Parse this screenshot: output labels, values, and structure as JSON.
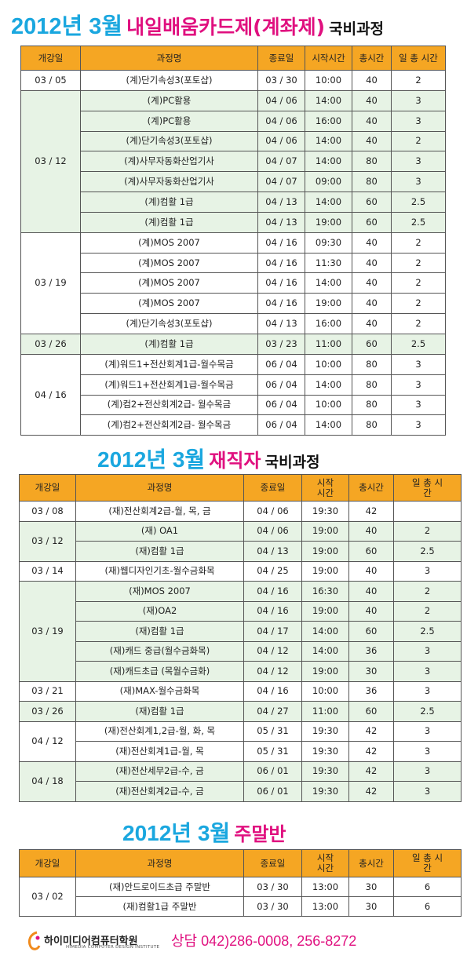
{
  "sections": [
    {
      "title": {
        "year": "2012년 3월",
        "highlight": "내일배움카드제(계좌제)",
        "tail": "국비과정"
      },
      "headers": [
        "개강일",
        "과정명",
        "종료일",
        "시작시간",
        "총시간",
        "일 총 시간"
      ],
      "groups": [
        {
          "date": "03 / 05",
          "shade": false,
          "rows": [
            [
              "(계)단기속성3(포토샵)",
              "03 / 30",
              "10:00",
              "40",
              "2"
            ]
          ]
        },
        {
          "date": "03 / 12",
          "shade": true,
          "rows": [
            [
              "(계)PC활용",
              "04 / 06",
              "14:00",
              "40",
              "3"
            ],
            [
              "(계)PC활용",
              "04 / 06",
              "16:00",
              "40",
              "3"
            ],
            [
              "(계)단기속성3(포토샵)",
              "04 / 06",
              "14:00",
              "40",
              "2"
            ],
            [
              "(계)사무자동화산업기사",
              "04 / 07",
              "14:00",
              "80",
              "3"
            ],
            [
              "(계)사무자동화산업기사",
              "04 / 07",
              "09:00",
              "80",
              "3"
            ],
            [
              "(계)컴활 1급",
              "04 / 13",
              "14:00",
              "60",
              "2.5"
            ],
            [
              "(계)컴활 1급",
              "04 / 13",
              "19:00",
              "60",
              "2.5"
            ]
          ]
        },
        {
          "date": "03 / 19",
          "shade": false,
          "rows": [
            [
              "(계)MOS 2007",
              "04 / 16",
              "09:30",
              "40",
              "2"
            ],
            [
              "(계)MOS 2007",
              "04 / 16",
              "11:30",
              "40",
              "2"
            ],
            [
              "(계)MOS 2007",
              "04 / 16",
              "14:00",
              "40",
              "2"
            ],
            [
              "(계)MOS 2007",
              "04 / 16",
              "19:00",
              "40",
              "2"
            ],
            [
              "(계)단기속성3(포토샵)",
              "04 / 13",
              "16:00",
              "40",
              "2"
            ]
          ]
        },
        {
          "date": "03 / 26",
          "shade": true,
          "rows": [
            [
              "(계)컴활 1급",
              "03 / 23",
              "11:00",
              "60",
              "2.5"
            ]
          ]
        },
        {
          "date": "04 / 16",
          "shade": false,
          "rows": [
            [
              "(계)워드1+전산회계1급-월수목금",
              "06 /  04",
              "10:00",
              "80",
              "3"
            ],
            [
              "(계)워드1+전산회계1급-월수목금",
              "06 /  04",
              "14:00",
              "80",
              "3"
            ],
            [
              "(계)컴2+전산회계2급- 월수목금",
              "06 /  04",
              "10:00",
              "80",
              "3"
            ],
            [
              "(계)컴2+전산회계2급- 월수목금",
              "06 /  04",
              "14:00",
              "80",
              "3"
            ]
          ]
        }
      ]
    },
    {
      "title": {
        "year": "2012년 3월",
        "highlight": "재직자",
        "tail": "국비과정"
      },
      "headers": [
        "개강일",
        "과정명",
        "종료일",
        "시작 시간",
        "총시간",
        "일 총 시간"
      ],
      "groups": [
        {
          "date": "03 / 08",
          "shade": false,
          "rows": [
            [
              "(재)전산회계2급-월, 목, 금",
              "04 / 06",
              "19:30",
              "42",
              ""
            ]
          ]
        },
        {
          "date": "03 / 12",
          "shade": true,
          "rows": [
            [
              "(재) OA1",
              "04 / 06",
              "19:00",
              "40",
              "2"
            ],
            [
              "(재)컴활 1급",
              "04 / 13",
              "19:00",
              "60",
              "2.5"
            ]
          ]
        },
        {
          "date": "03 / 14",
          "shade": false,
          "rows": [
            [
              "(재)웹디자인기초-월수금화목",
              "04 / 25",
              "19:00",
              "40",
              "3"
            ]
          ]
        },
        {
          "date": "03 / 19",
          "shade": true,
          "rows": [
            [
              "(재)MOS 2007",
              "04 / 16",
              "16:30",
              "40",
              "2"
            ],
            [
              "(재)OA2",
              "04 / 16",
              "19:00",
              "40",
              "2"
            ],
            [
              "(재)컴활 1급",
              "04 / 17",
              "14:00",
              "60",
              "2.5"
            ],
            [
              "(재)캐드 중급(월수금화목)",
              "04 / 12",
              "14:00",
              "36",
              "3"
            ],
            [
              "(재)캐드초급 (목월수금화)",
              "04 / 12",
              "19:00",
              "30",
              "3"
            ]
          ]
        },
        {
          "date": "03 / 21",
          "shade": false,
          "rows": [
            [
              "(재)MAX-월수금화목",
              "04 / 16",
              "10:00",
              "36",
              "3"
            ]
          ]
        },
        {
          "date": "03 / 26",
          "shade": true,
          "rows": [
            [
              "(재)컴활 1급",
              "04 / 27",
              "11:00",
              "60",
              "2.5"
            ]
          ]
        },
        {
          "date": "04 / 12",
          "shade": false,
          "rows": [
            [
              "(재)전산회계1,2급-월, 화, 목",
              "05 / 31",
              "19:30",
              "42",
              "3"
            ],
            [
              "(재)전산회계1급-월, 목",
              "05 / 31",
              "19:30",
              "42",
              "3"
            ]
          ]
        },
        {
          "date": "04 / 18",
          "shade": true,
          "rows": [
            [
              "(재)전산세무2급-수, 금",
              "06 / 01",
              "19:30",
              "42",
              "3"
            ],
            [
              "(재)전산회계2급-수, 금",
              "06 / 01",
              "19:30",
              "42",
              "3"
            ]
          ]
        }
      ]
    },
    {
      "title": {
        "year": "2012년 3월",
        "highlight": "주말반",
        "tail": ""
      },
      "headers": [
        "개강일",
        "과정명",
        "종료일",
        "시작 시간",
        "총시간",
        "일 총 시간"
      ],
      "groups": [
        {
          "date": "03 / 02",
          "shade": false,
          "rows": [
            [
              "(재)안드로이드초급 주말반",
              "03 / 30",
              "13:00",
              "30",
              "6"
            ],
            [
              "(재)컴활1급 주말반",
              "03 / 30",
              "13:00",
              "30",
              "6"
            ]
          ]
        }
      ]
    }
  ],
  "footer": {
    "logo": "하이미디어컴퓨터학원",
    "logo_sub": "HIMEDIA COMPUTER DESIGN INSTITUTE",
    "contact": "상담 042)286-0008, 256-8272"
  }
}
